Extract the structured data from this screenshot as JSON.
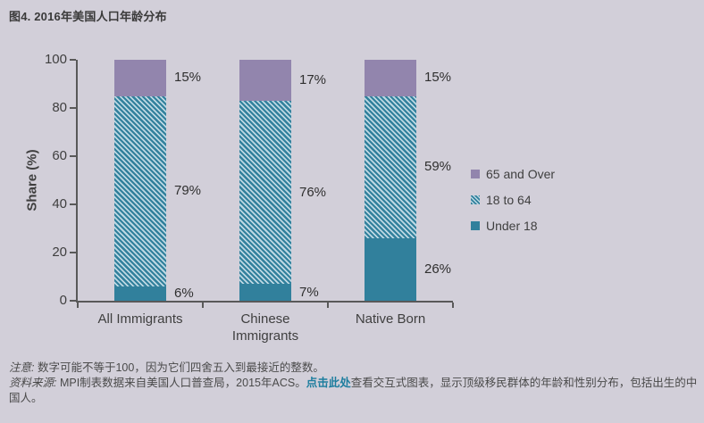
{
  "page": {
    "title": "图4. 2016年美国人口年龄分布"
  },
  "chart_data": {
    "type": "bar",
    "stacked": true,
    "categories": [
      "All Immigrants",
      "Chinese Immigrants",
      "Native Born"
    ],
    "series": [
      {
        "name": "Under 18",
        "values": [
          6,
          7,
          26
        ],
        "pattern": "solid",
        "color_key": "teal"
      },
      {
        "name": "18 to 64",
        "values": [
          79,
          76,
          59
        ],
        "pattern": "diagonal-hatch",
        "color_key": "teal"
      },
      {
        "name": "65 and Over",
        "values": [
          15,
          17,
          15
        ],
        "pattern": "solid",
        "color_key": "purple"
      }
    ],
    "data_label_format": "{value}%",
    "title": "图4. 2016年美国人口年龄分布",
    "xlabel": "",
    "ylabel": "Share (%)",
    "ylim": [
      0,
      100
    ],
    "yticks": [
      0,
      20,
      40,
      60,
      80,
      100
    ],
    "grid": false,
    "legend_position": "right"
  },
  "legend": {
    "items": [
      {
        "label": "65 and Over",
        "swatch": "purple-solid"
      },
      {
        "label": "18 to 64",
        "swatch": "teal-hatch"
      },
      {
        "label": "Under 18",
        "swatch": "teal-solid"
      }
    ]
  },
  "colors": {
    "background": "#d2cfd9",
    "teal": "#31809c",
    "purple": "#9285ad",
    "hatch_light": "#bdd8e3",
    "axis": "#595959",
    "text": "#3f3f3f",
    "link": "#1c7d9e"
  },
  "footer": {
    "note_label": "注意:",
    "note_text": " 数字可能不等于100，因为它们四舍五入到最接近的整数。",
    "source_label": "资料来源:",
    "source_text_before_link": " MPI制表数据来自美国人口普查局，2015年ACS。",
    "link_text": "点击此处",
    "source_text_after_link": "查看交互式图表，显示顶级移民群体的年龄和性别分布，包括出生的中国人。"
  }
}
